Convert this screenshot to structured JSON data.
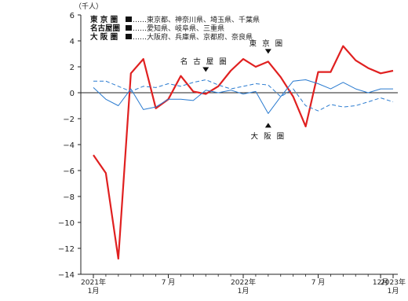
{
  "chart_data": {
    "type": "line",
    "unit_label": "（千人）",
    "ylim": [
      -14,
      6
    ],
    "yticks": [
      6,
      4,
      2,
      0,
      -2,
      -4,
      -6,
      -8,
      -10,
      -12,
      -14
    ],
    "x_ticks": [
      {
        "index": 0,
        "line1": "2021年",
        "line2": "1月"
      },
      {
        "index": 6,
        "line1": "7 月",
        "line2": ""
      },
      {
        "index": 12,
        "line1": "2022年",
        "line2": "1月"
      },
      {
        "index": 18,
        "line1": "7 月",
        "line2": ""
      },
      {
        "index": 23,
        "line1": "12月",
        "line2": ""
      },
      {
        "index": 24,
        "line1": "2023年",
        "line2": "1月"
      }
    ],
    "series": [
      {
        "name": "東 京 圏",
        "color": "#e02020",
        "style": "solid-thick",
        "values": [
          -4.8,
          -6.2,
          -12.8,
          1.5,
          2.6,
          -1.2,
          -0.5,
          1.3,
          0.1,
          -0.1,
          0.5,
          1.7,
          2.6,
          2.0,
          2.4,
          1.2,
          -0.3,
          -2.6,
          1.6,
          1.6,
          3.6,
          2.5,
          1.9,
          1.5,
          1.7
        ]
      },
      {
        "name": "名古屋圏",
        "color": "#2a7bd0",
        "style": "dashed",
        "values": [
          0.9,
          0.9,
          0.5,
          0.1,
          0.5,
          0.4,
          0.7,
          0.5,
          0.8,
          1.0,
          0.6,
          0.3,
          0.5,
          0.7,
          0.6,
          -0.3,
          0.3,
          -1.0,
          -1.4,
          -0.9,
          -1.1,
          -1.0,
          -0.7,
          -0.4,
          -0.7
        ]
      },
      {
        "name": "大 阪 圏",
        "color": "#2a7bd0",
        "style": "solid-thin",
        "values": [
          0.4,
          -0.5,
          -1.0,
          0.3,
          -1.3,
          -1.1,
          -0.5,
          -0.5,
          -0.6,
          0.2,
          0.0,
          0.2,
          -0.1,
          0.1,
          -1.6,
          -0.3,
          0.9,
          1.0,
          0.7,
          0.3,
          0.8,
          0.3,
          0.0,
          0.3,
          0.3
        ]
      }
    ],
    "legend": [
      {
        "key": "東 京 圏",
        "desc": "……東京都、神奈川県、埼玉県、千葉県"
      },
      {
        "key": "名古屋圏",
        "desc": "……愛知県、岐阜県、三重県"
      },
      {
        "key": "大 阪 圏",
        "desc": "……大阪府、兵庫県、京都府、奈良県"
      }
    ],
    "annotations": [
      {
        "text": "東 京 圏",
        "index": 14,
        "value": 2.4,
        "marker": "down"
      },
      {
        "text": "名 古 屋 圏",
        "index": 9,
        "value": 1.0,
        "marker": "down"
      },
      {
        "text": "大 阪 圏",
        "index": 14,
        "value": -1.6,
        "marker": "up"
      }
    ],
    "legend_position": "top-left",
    "grid": false
  }
}
